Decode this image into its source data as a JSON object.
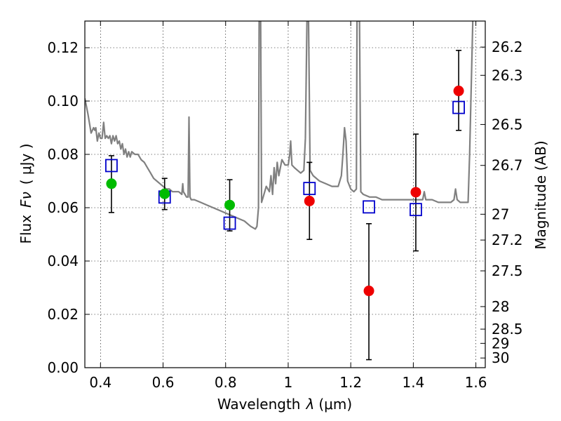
{
  "chart_data": {
    "type": "scatter",
    "xlabel_prefix": "Wavelength",
    "xlabel_symbol": "λ",
    "xlabel_unit": "(μm)",
    "ylabel_prefix": "Flux",
    "ylabel_symbol": "Fν",
    "ylabel_unit": "( μJy )",
    "y2label": "Magnitude (AB)",
    "xlim": [
      0.35,
      1.63
    ],
    "ylim": [
      0.0,
      0.13
    ],
    "grid": true,
    "x_ticks": [
      {
        "value": 0.4,
        "label": "0.4"
      },
      {
        "value": 0.6,
        "label": "0.6"
      },
      {
        "value": 0.8,
        "label": "0.8"
      },
      {
        "value": 1.0,
        "label": "1"
      },
      {
        "value": 1.2,
        "label": "1.2"
      },
      {
        "value": 1.4,
        "label": "1.4"
      },
      {
        "value": 1.6,
        "label": "1.6"
      }
    ],
    "y_ticks": [
      {
        "value": 0.0,
        "label": "0.00"
      },
      {
        "value": 0.02,
        "label": "0.02"
      },
      {
        "value": 0.04,
        "label": "0.04"
      },
      {
        "value": 0.06,
        "label": "0.06"
      },
      {
        "value": 0.08,
        "label": "0.08"
      },
      {
        "value": 0.1,
        "label": "0.10"
      },
      {
        "value": 0.12,
        "label": "0.12"
      }
    ],
    "y2_ticks": [
      {
        "mag": 26.2,
        "label": "26.2"
      },
      {
        "mag": 26.3,
        "label": "26.3"
      },
      {
        "mag": 26.5,
        "label": "26.5"
      },
      {
        "mag": 26.7,
        "label": "26.7"
      },
      {
        "mag": 27.0,
        "label": "27"
      },
      {
        "mag": 27.2,
        "label": "27.2"
      },
      {
        "mag": 27.5,
        "label": "27.5"
      },
      {
        "mag": 28.0,
        "label": "28"
      },
      {
        "mag": 28.5,
        "label": "28.5"
      },
      {
        "mag": 29.0,
        "label": "29"
      },
      {
        "mag": 30.0,
        "label": "30"
      }
    ],
    "series": [
      {
        "name": "template-spectrum",
        "kind": "line",
        "color": "#808080",
        "points": [
          [
            0.35,
            0.101
          ],
          [
            0.36,
            0.095
          ],
          [
            0.37,
            0.088
          ],
          [
            0.378,
            0.09
          ],
          [
            0.382,
            0.089
          ],
          [
            0.385,
            0.09
          ],
          [
            0.39,
            0.085
          ],
          [
            0.395,
            0.088
          ],
          [
            0.4,
            0.086
          ],
          [
            0.405,
            0.086
          ],
          [
            0.41,
            0.092
          ],
          [
            0.415,
            0.086
          ],
          [
            0.42,
            0.087
          ],
          [
            0.425,
            0.086
          ],
          [
            0.43,
            0.087
          ],
          [
            0.435,
            0.084
          ],
          [
            0.44,
            0.087
          ],
          [
            0.445,
            0.085
          ],
          [
            0.45,
            0.087
          ],
          [
            0.455,
            0.084
          ],
          [
            0.46,
            0.085
          ],
          [
            0.465,
            0.082
          ],
          [
            0.47,
            0.084
          ],
          [
            0.475,
            0.08
          ],
          [
            0.48,
            0.082
          ],
          [
            0.485,
            0.079
          ],
          [
            0.49,
            0.081
          ],
          [
            0.495,
            0.079
          ],
          [
            0.5,
            0.081
          ],
          [
            0.51,
            0.08
          ],
          [
            0.52,
            0.08
          ],
          [
            0.53,
            0.078
          ],
          [
            0.54,
            0.077
          ],
          [
            0.55,
            0.075
          ],
          [
            0.56,
            0.073
          ],
          [
            0.57,
            0.071
          ],
          [
            0.58,
            0.07
          ],
          [
            0.59,
            0.069
          ],
          [
            0.6,
            0.068
          ],
          [
            0.61,
            0.067
          ],
          [
            0.62,
            0.067
          ],
          [
            0.63,
            0.066
          ],
          [
            0.64,
            0.066
          ],
          [
            0.65,
            0.066
          ],
          [
            0.655,
            0.0655
          ],
          [
            0.66,
            0.065
          ],
          [
            0.663,
            0.069
          ],
          [
            0.665,
            0.066
          ],
          [
            0.67,
            0.065
          ],
          [
            0.675,
            0.064
          ],
          [
            0.68,
            0.064
          ],
          [
            0.683,
            0.094
          ],
          [
            0.686,
            0.064
          ],
          [
            0.69,
            0.063
          ],
          [
            0.7,
            0.063
          ],
          [
            0.72,
            0.062
          ],
          [
            0.74,
            0.061
          ],
          [
            0.76,
            0.06
          ],
          [
            0.78,
            0.059
          ],
          [
            0.8,
            0.058
          ],
          [
            0.82,
            0.057
          ],
          [
            0.84,
            0.056
          ],
          [
            0.86,
            0.055
          ],
          [
            0.88,
            0.053
          ],
          [
            0.895,
            0.052
          ],
          [
            0.9,
            0.053
          ],
          [
            0.905,
            0.06
          ],
          [
            0.907,
            0.13
          ],
          [
            0.912,
            0.13
          ],
          [
            0.915,
            0.062
          ],
          [
            0.92,
            0.064
          ],
          [
            0.93,
            0.068
          ],
          [
            0.94,
            0.066
          ],
          [
            0.945,
            0.072
          ],
          [
            0.95,
            0.065
          ],
          [
            0.955,
            0.075
          ],
          [
            0.96,
            0.069
          ],
          [
            0.965,
            0.077
          ],
          [
            0.97,
            0.072
          ],
          [
            0.975,
            0.075
          ],
          [
            0.98,
            0.078
          ],
          [
            0.99,
            0.076
          ],
          [
            1.0,
            0.076
          ],
          [
            1.005,
            0.08
          ],
          [
            1.008,
            0.085
          ],
          [
            1.012,
            0.076
          ],
          [
            1.02,
            0.075
          ],
          [
            1.03,
            0.074
          ],
          [
            1.04,
            0.073
          ],
          [
            1.05,
            0.074
          ],
          [
            1.055,
            0.086
          ],
          [
            1.06,
            0.13
          ],
          [
            1.065,
            0.13
          ],
          [
            1.07,
            0.074
          ],
          [
            1.08,
            0.072
          ],
          [
            1.1,
            0.07
          ],
          [
            1.12,
            0.069
          ],
          [
            1.14,
            0.068
          ],
          [
            1.16,
            0.068
          ],
          [
            1.17,
            0.072
          ],
          [
            1.175,
            0.08
          ],
          [
            1.18,
            0.09
          ],
          [
            1.185,
            0.085
          ],
          [
            1.19,
            0.07
          ],
          [
            1.2,
            0.067
          ],
          [
            1.21,
            0.066
          ],
          [
            1.218,
            0.067
          ],
          [
            1.22,
            0.13
          ],
          [
            1.228,
            0.13
          ],
          [
            1.232,
            0.066
          ],
          [
            1.24,
            0.065
          ],
          [
            1.26,
            0.064
          ],
          [
            1.28,
            0.064
          ],
          [
            1.3,
            0.063
          ],
          [
            1.33,
            0.063
          ],
          [
            1.36,
            0.063
          ],
          [
            1.4,
            0.063
          ],
          [
            1.42,
            0.063
          ],
          [
            1.43,
            0.063
          ],
          [
            1.435,
            0.066
          ],
          [
            1.44,
            0.063
          ],
          [
            1.46,
            0.063
          ],
          [
            1.48,
            0.062
          ],
          [
            1.5,
            0.062
          ],
          [
            1.52,
            0.062
          ],
          [
            1.53,
            0.063
          ],
          [
            1.535,
            0.067
          ],
          [
            1.54,
            0.063
          ],
          [
            1.55,
            0.062
          ],
          [
            1.56,
            0.062
          ],
          [
            1.575,
            0.062
          ],
          [
            1.58,
            0.08
          ],
          [
            1.59,
            0.13
          ]
        ]
      },
      {
        "name": "model-photometry",
        "kind": "open-square",
        "color": "#0000cc",
        "points": [
          {
            "x": 0.435,
            "y": 0.0758
          },
          {
            "x": 0.605,
            "y": 0.064
          },
          {
            "x": 0.813,
            "y": 0.0542
          },
          {
            "x": 1.068,
            "y": 0.0672
          },
          {
            "x": 1.258,
            "y": 0.0603
          },
          {
            "x": 1.408,
            "y": 0.0593
          },
          {
            "x": 1.545,
            "y": 0.0976
          }
        ]
      },
      {
        "name": "observed-optical",
        "kind": "filled-circle",
        "color": "#00bb00",
        "points": [
          {
            "x": 0.435,
            "y": 0.069,
            "err_lo": 0.0582,
            "err_hi": 0.0795
          },
          {
            "x": 0.605,
            "y": 0.0652,
            "err_lo": 0.0593,
            "err_hi": 0.071
          },
          {
            "x": 0.813,
            "y": 0.061,
            "err_lo": 0.0513,
            "err_hi": 0.0705
          }
        ]
      },
      {
        "name": "observed-nir",
        "kind": "filled-circle",
        "color": "#ee0000",
        "points": [
          {
            "x": 1.068,
            "y": 0.0625,
            "err_lo": 0.0481,
            "err_hi": 0.077
          },
          {
            "x": 1.258,
            "y": 0.0288,
            "err_lo": 0.003,
            "err_hi": 0.054
          },
          {
            "x": 1.408,
            "y": 0.0658,
            "err_lo": 0.0438,
            "err_hi": 0.0876
          },
          {
            "x": 1.545,
            "y": 0.1038,
            "err_lo": 0.089,
            "err_hi": 0.119
          }
        ]
      }
    ]
  }
}
